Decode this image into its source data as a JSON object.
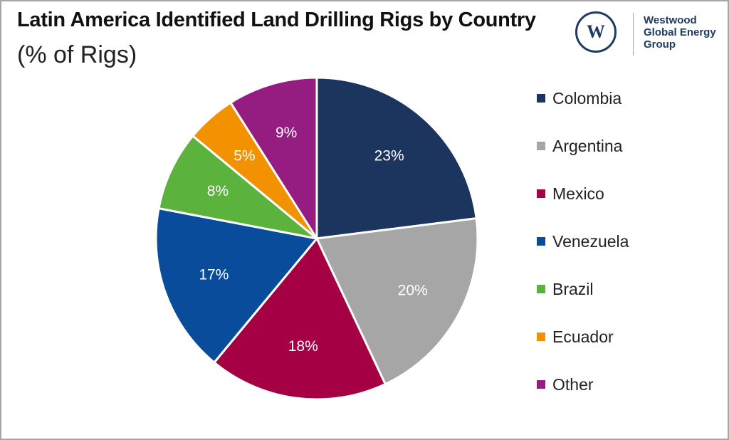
{
  "header": {
    "title": "Latin America Identified Land Drilling Rigs by Country",
    "subtitle": "(% of Rigs)"
  },
  "logo": {
    "mark": "W",
    "text": "Westwood\nGlobal Energy\nGroup",
    "icon": "westwood-logo-icon",
    "color": "#1f3a63"
  },
  "chart_data": {
    "type": "pie",
    "title": "Latin America Identified Land Drilling Rigs by Country",
    "subtitle": "(% of Rigs)",
    "legend_position": "right",
    "slices": [
      {
        "name": "Colombia",
        "value": 23,
        "label": "23%",
        "color": "#1c355e"
      },
      {
        "name": "Argentina",
        "value": 20,
        "label": "20%",
        "color": "#a6a6a6"
      },
      {
        "name": "Mexico",
        "value": 18,
        "label": "18%",
        "color": "#a50044"
      },
      {
        "name": "Venezuela",
        "value": 17,
        "label": "17%",
        "color": "#0a4c9c"
      },
      {
        "name": "Brazil",
        "value": 8,
        "label": "8%",
        "color": "#5bb33e"
      },
      {
        "name": "Ecuador",
        "value": 5,
        "label": "5%",
        "color": "#f39200"
      },
      {
        "name": "Other",
        "value": 9,
        "label": "9%",
        "color": "#951c80"
      }
    ]
  }
}
